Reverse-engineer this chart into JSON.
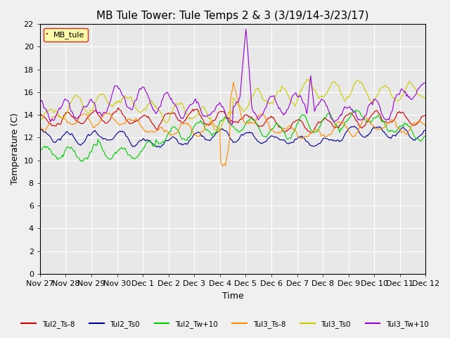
{
  "title": "MB Tule Tower: Tule Temps 2 & 3 (3/19/14-3/23/17)",
  "xlabel": "Time",
  "ylabel": "Temperature (C)",
  "ylim": [
    0,
    22
  ],
  "yticks": [
    0,
    2,
    4,
    6,
    8,
    10,
    12,
    14,
    16,
    18,
    20,
    22
  ],
  "xtick_labels": [
    "Nov 27",
    "Nov 28",
    "Nov 29",
    "Nov 30",
    "Dec 1",
    "Dec 2",
    "Dec 3",
    "Dec 4",
    "Dec 5",
    "Dec 6",
    "Dec 7",
    "Dec 8",
    "Dec 9",
    "Dec 10",
    "Dec 11",
    "Dec 12"
  ],
  "legend_label": "MB_tule",
  "series_labels": [
    "Tul2_Ts-8",
    "Tul2_Ts0",
    "Tul2_Tw+10",
    "Tul3_Ts-8",
    "Tul3_Ts0",
    "Tul3_Tw+10"
  ],
  "series_colors": [
    "#cc0000",
    "#00008b",
    "#00cc00",
    "#ff8c00",
    "#cccc00",
    "#9400d3"
  ],
  "background_color": "#e8e8e8",
  "fig_background_color": "#f0f0f0",
  "grid_color": "#ffffff",
  "title_fontsize": 11,
  "axis_fontsize": 9,
  "tick_fontsize": 8,
  "legend_facecolor": "#ffff99",
  "legend_edgecolor": "#cc0000"
}
